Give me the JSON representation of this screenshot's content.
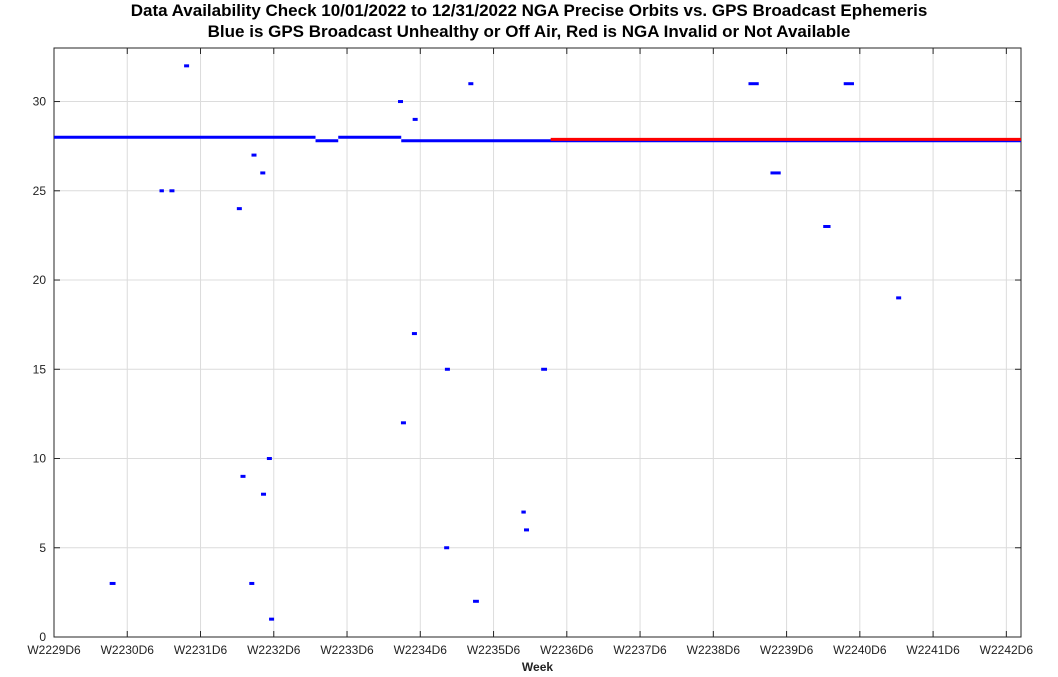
{
  "chart_data": {
    "type": "scatter",
    "title": "Data Availability Check  10/01/2022 to 12/31/2022  NGA Precise Orbits vs. GPS Broadcast Ephemeris",
    "subtitle": "Blue is GPS Broadcast Unhealthy or Off Air,    Red is NGA Invalid or Not Available",
    "xlabel": "Week",
    "ylabel": "",
    "x_tick_labels": [
      "W2229D6",
      "W2230D6",
      "W2231D6",
      "W2232D6",
      "W2233D6",
      "W2234D6",
      "W2235D6",
      "W2236D6",
      "W2237D6",
      "W2238D6",
      "W2239D6",
      "W2240D6",
      "W2241D6",
      "W2242D6"
    ],
    "y_ticks": [
      0,
      5,
      10,
      15,
      20,
      25,
      30
    ],
    "xlim": [
      0,
      13.2
    ],
    "ylim": [
      0,
      33
    ],
    "grid": true,
    "series": [
      {
        "color": "#0000ff",
        "segments": [
          {
            "x0": 0.0,
            "x1": 3.57,
            "y": 28.0
          },
          {
            "x0": 3.57,
            "x1": 3.88,
            "y": 27.8
          },
          {
            "x0": 3.88,
            "x1": 4.74,
            "y": 28.0
          },
          {
            "x0": 4.74,
            "x1": 13.2,
            "y": 27.8
          },
          {
            "x0": 9.48,
            "x1": 9.62,
            "y": 31.0
          },
          {
            "x0": 9.78,
            "x1": 9.92,
            "y": 26.0
          },
          {
            "x0": 10.5,
            "x1": 10.6,
            "y": 23.0
          },
          {
            "x0": 10.78,
            "x1": 10.92,
            "y": 31.0
          },
          {
            "x0": 6.65,
            "x1": 6.73,
            "y": 15.0
          },
          {
            "x0": 5.72,
            "x1": 5.8,
            "y": 2.0
          },
          {
            "x0": 6.38,
            "x1": 6.44,
            "y": 7.0
          },
          {
            "x0": 1.44,
            "x1": 1.5,
            "y": 25.0
          },
          {
            "x0": 0.76,
            "x1": 0.84,
            "y": 3.0
          }
        ],
        "points": [
          {
            "x": 1.81,
            "y": 32.0
          },
          {
            "x": 1.61,
            "y": 25.0
          },
          {
            "x": 2.53,
            "y": 24.0
          },
          {
            "x": 2.73,
            "y": 27.0
          },
          {
            "x": 2.85,
            "y": 26.0
          },
          {
            "x": 2.58,
            "y": 9.0
          },
          {
            "x": 2.94,
            "y": 10.0
          },
          {
            "x": 2.86,
            "y": 8.0
          },
          {
            "x": 2.7,
            "y": 3.0
          },
          {
            "x": 2.97,
            "y": 1.0
          },
          {
            "x": 4.73,
            "y": 30.0
          },
          {
            "x": 4.93,
            "y": 29.0
          },
          {
            "x": 5.69,
            "y": 31.0
          },
          {
            "x": 4.92,
            "y": 17.0
          },
          {
            "x": 5.37,
            "y": 15.0
          },
          {
            "x": 4.77,
            "y": 12.0
          },
          {
            "x": 5.36,
            "y": 5.0
          },
          {
            "x": 6.45,
            "y": 6.0
          },
          {
            "x": 11.53,
            "y": 19.0
          }
        ]
      },
      {
        "color": "#ff0000",
        "segments": [
          {
            "x0": 6.78,
            "x1": 13.2,
            "y": 27.88
          }
        ],
        "points": []
      }
    ]
  }
}
